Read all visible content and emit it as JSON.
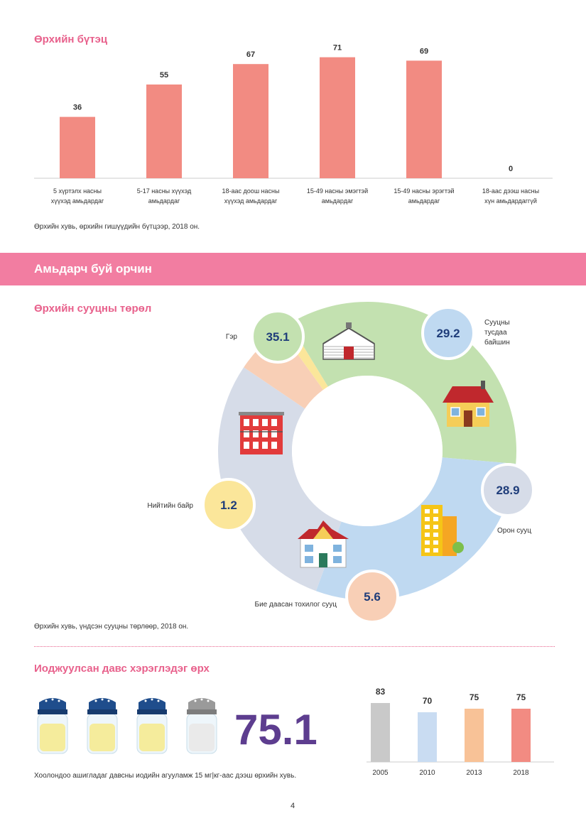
{
  "household_structure": {
    "title": "Өрхийн бүтэц",
    "caption": "Өрхийн хувь, өрхийн гишүүдийн бүтцээр, 2018 он.",
    "chart_data": {
      "type": "bar",
      "categories": [
        [
          "5 хүртэлх насны",
          "хүүхэд амьдардаг"
        ],
        [
          "5-17 насны хүүхэд",
          "амьдардаг"
        ],
        [
          "18-аас доош насны",
          "хүүхэд амьдардаг"
        ],
        [
          "15-49 насны эмэгтэй",
          "амьдардаг"
        ],
        [
          "15-49 насны эрэгтэй",
          "амьдардаг"
        ],
        [
          "18-аас дээш насны",
          "хүн амьдардаггүй"
        ]
      ],
      "values": [
        36,
        55,
        67,
        71,
        69,
        0
      ],
      "labels": [
        "36",
        "55",
        "67",
        "71",
        "69",
        "0"
      ],
      "color": "#f28b82"
    }
  },
  "banner": {
    "title": "Амьдарч буй орчин"
  },
  "dwelling": {
    "title": "Өрхийн сууцны төрөл",
    "caption": "Өрхийн хувь, үндсэн сууцны төрлөөр, 2018 он.",
    "chart_data": {
      "type": "pie",
      "slices": [
        {
          "label": "Гэр",
          "value": 35.1,
          "value_label": "35.1",
          "color": "#c3e1b0",
          "icon": "ger-icon"
        },
        {
          "label": "Сууцны тусдаа байшин",
          "label_lines": [
            "Сууцны",
            "тусдаа",
            "байшин"
          ],
          "value": 29.2,
          "value_label": "29.2",
          "color": "#bfd9f1",
          "icon": "house-icon"
        },
        {
          "label": "Орон сууц",
          "value": 28.9,
          "value_label": "28.9",
          "color": "#d6dce8",
          "icon": "apartment-building-icon"
        },
        {
          "label": "Бие даасан тохилог сууц",
          "value": 5.6,
          "value_label": "5.6",
          "color": "#f8cfb6",
          "icon": "private-house-icon"
        },
        {
          "label": "Нийтийн байр",
          "value": 1.2,
          "value_label": "1.2",
          "color": "#fbe69a",
          "icon": "dormitory-icon"
        }
      ]
    }
  },
  "iodized_salt": {
    "title": "Иоджуулсан давс хэрэглэдэг өрх",
    "big_value": "75.1",
    "caption": "Хоолондоо ашигладаг давсны иодийн агууламж 15 мг|кг-аас дээш өрхийн хувь.",
    "shaker_icons": [
      "salt-shaker-icon",
      "salt-shaker-icon",
      "salt-shaker-icon",
      "salt-shaker-icon"
    ],
    "chart_data": {
      "type": "bar",
      "categories": [
        "2005",
        "2010",
        "2013",
        "2018"
      ],
      "values": [
        83,
        70,
        75,
        75
      ],
      "labels": [
        "83",
        "70",
        "75",
        "75"
      ],
      "colors": [
        "#c9c9c9",
        "#c9dcf2",
        "#f8c297",
        "#f28b82"
      ]
    }
  },
  "page_number": "4"
}
